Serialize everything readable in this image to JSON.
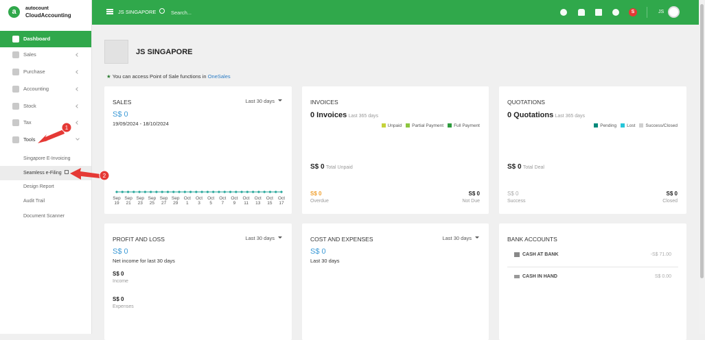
{
  "sidebar": {
    "logo": {
      "brand": "autocount",
      "product": "CloudAccounting"
    },
    "menu": [
      "Dashboard",
      "Sales",
      "Purchase",
      "Accounting",
      "Stock",
      "Tax",
      "Tools"
    ],
    "tools_submenu": [
      "Singapore E-Invoicing",
      "Seamless e-Filing",
      "Design Report",
      "Audit Trail",
      "Document Scanner"
    ]
  },
  "header": {
    "company": "JS SINGAPORE",
    "search_placeholder": "Search...",
    "badge": "S",
    "user": "JS"
  },
  "annotations": [
    "1",
    "2"
  ],
  "company": {
    "name": "JS SINGAPORE",
    "notice": "You can access Point of Sale functions in",
    "notice_link": "OneSales"
  },
  "cards": {
    "sales": {
      "title": "SALES",
      "period": "Last 30 days",
      "amount": "S$ 0",
      "date_range": "19/09/2024 - 18/10/2024",
      "chart": {
        "x_labels": [
          [
            "Sep",
            "19"
          ],
          [
            "Sep",
            "21"
          ],
          [
            "Sep",
            "23"
          ],
          [
            "Sep",
            "25"
          ],
          [
            "Sep",
            "27"
          ],
          [
            "Sep",
            "29"
          ],
          [
            "Oct",
            "1"
          ],
          [
            "Oct",
            "3"
          ],
          [
            "Oct",
            "5"
          ],
          [
            "Oct",
            "7"
          ],
          [
            "Oct",
            "9"
          ],
          [
            "Oct",
            "11"
          ],
          [
            "Oct",
            "13"
          ],
          [
            "Oct",
            "15"
          ],
          [
            "Oct",
            "17"
          ]
        ],
        "values": [
          0,
          0,
          0,
          0,
          0,
          0,
          0,
          0,
          0,
          0,
          0,
          0,
          0,
          0,
          0,
          0,
          0,
          0,
          0,
          0,
          0,
          0,
          0,
          0,
          0,
          0,
          0,
          0,
          0,
          0
        ]
      }
    },
    "invoices": {
      "title": "INVOICES",
      "count": "0 Invoices",
      "period": "Last 365 days",
      "legend": [
        {
          "name": "Unpaid",
          "color": "#c5d23a"
        },
        {
          "name": "Partial Payment",
          "color": "#8cc63f"
        },
        {
          "name": "Full Payment",
          "color": "#2e9b3e"
        }
      ],
      "total": "S$ 0",
      "total_label": "Total Unpaid",
      "overdue": "S$ 0",
      "overdue_label": "Overdue",
      "not_due": "S$ 0",
      "not_due_label": "Not Due"
    },
    "quotations": {
      "title": "QUOTATIONS",
      "count": "0 Quotations",
      "period": "Last 365 days",
      "legend": [
        {
          "name": "Pending",
          "color": "#00897b"
        },
        {
          "name": "Lost",
          "color": "#26c6da"
        },
        {
          "name": "Success/Closed",
          "color": "#cfcfcf"
        }
      ],
      "total": "S$ 0",
      "total_label": "Total Deal",
      "success": "S$ 0",
      "success_label": "Success",
      "closed": "S$ 0",
      "closed_label": "Closed"
    },
    "profit_loss": {
      "title": "PROFIT AND LOSS",
      "period": "Last 30 days",
      "amount": "S$ 0",
      "amount_label": "Net income for last 30 days",
      "income": "S$ 0",
      "income_label": "Income",
      "expenses": "S$ 0",
      "expenses_label": "Expenses"
    },
    "cost_expenses": {
      "title": "COST AND EXPENSES",
      "period": "Last 30 days",
      "amount": "S$ 0",
      "amount_label": "Last 30 days"
    },
    "bank_accounts": {
      "title": "BANK ACCOUNTS",
      "accounts": [
        {
          "name": "CASH AT BANK",
          "balance": "-S$ 71.00"
        },
        {
          "name": "CASH IN HAND",
          "balance": "S$ 0.00"
        }
      ]
    }
  }
}
